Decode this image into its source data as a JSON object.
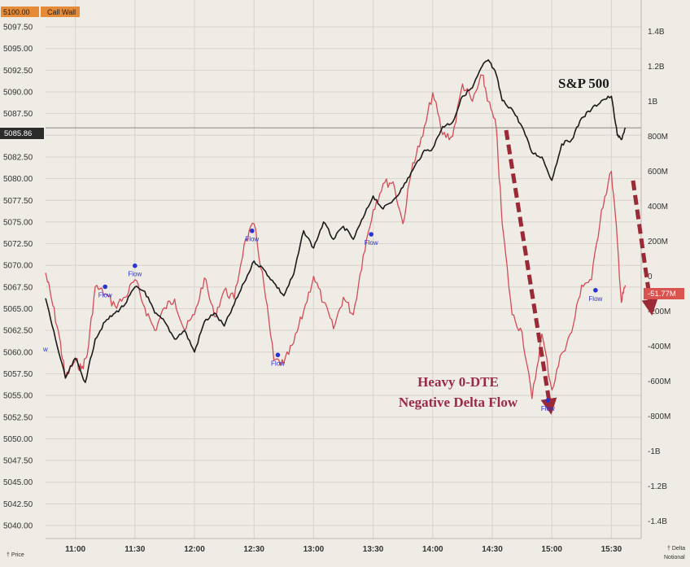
{
  "chart_data": {
    "type": "line",
    "title": "",
    "grid": true,
    "x_axis": {
      "ticks": [
        "11:00",
        "11:30",
        "12:00",
        "12:30",
        "13:00",
        "13:30",
        "14:00",
        "14:30",
        "15:00",
        "15:30"
      ],
      "range": [
        "10:45",
        "15:45"
      ],
      "label": "† Price"
    },
    "y_left": {
      "ticks": [
        "5097.50",
        "5095.00",
        "5092.50",
        "5090.00",
        "5087.50",
        "5085.00",
        "5082.50",
        "5080.00",
        "5077.50",
        "5075.00",
        "5072.50",
        "5070.00",
        "5067.50",
        "5065.00",
        "5062.50",
        "5060.00",
        "5057.50",
        "5055.00",
        "5052.50",
        "5050.00",
        "5047.50",
        "5045.00",
        "5042.50",
        "5040.00"
      ],
      "range": [
        5038.5,
        5100.6
      ],
      "current_label": "5085.86",
      "current_value": 5085.86,
      "top_label": "5100.00",
      "top_tag": "Call Wall"
    },
    "y_right": {
      "ticks": [
        "1.4B",
        "1.2B",
        "1B",
        "800M",
        "600M",
        "400M",
        "200M",
        "0",
        "-200M",
        "-400M",
        "-600M",
        "-800M",
        "-1B",
        "-1.2B",
        "-1.4B"
      ],
      "values_m": [
        1400,
        1200,
        1000,
        800,
        600,
        400,
        200,
        0,
        -200,
        -400,
        -600,
        -800,
        -1000,
        -1200,
        -1400
      ],
      "range_m": [
        -1500,
        1580
      ],
      "label": "† Delta Notional",
      "current_label": "-51.77M",
      "current_value_m": -51.77
    },
    "series": [
      {
        "name": "S&P 500",
        "axis": "left",
        "color": "#1c1a1a",
        "points": [
          [
            "10:45",
            5066.2
          ],
          [
            "10:50",
            5061.5
          ],
          [
            "10:55",
            5057.0
          ],
          [
            "11:00",
            5059.3
          ],
          [
            "11:05",
            5056.5
          ],
          [
            "11:10",
            5061.5
          ],
          [
            "11:15",
            5063.5
          ],
          [
            "11:20",
            5064.5
          ],
          [
            "11:25",
            5065.5
          ],
          [
            "11:30",
            5067.5
          ],
          [
            "11:35",
            5067.0
          ],
          [
            "11:40",
            5064.5
          ],
          [
            "11:45",
            5063.5
          ],
          [
            "11:50",
            5061.5
          ],
          [
            "11:55",
            5062.5
          ],
          [
            "12:00",
            5060.0
          ],
          [
            "12:05",
            5063.5
          ],
          [
            "12:10",
            5064.5
          ],
          [
            "12:15",
            5063.0
          ],
          [
            "12:20",
            5065.5
          ],
          [
            "12:25",
            5068.0
          ],
          [
            "12:30",
            5070.5
          ],
          [
            "12:35",
            5069.5
          ],
          [
            "12:40",
            5068.0
          ],
          [
            "12:45",
            5066.5
          ],
          [
            "12:50",
            5069.0
          ],
          [
            "12:55",
            5074.0
          ],
          [
            "13:00",
            5072.0
          ],
          [
            "13:05",
            5075.0
          ],
          [
            "13:10",
            5073.0
          ],
          [
            "13:15",
            5074.5
          ],
          [
            "13:20",
            5073.0
          ],
          [
            "13:25",
            5075.5
          ],
          [
            "13:30",
            5078.0
          ],
          [
            "13:35",
            5076.5
          ],
          [
            "13:40",
            5077.5
          ],
          [
            "13:45",
            5079.0
          ],
          [
            "13:50",
            5081.0
          ],
          [
            "13:55",
            5083.0
          ],
          [
            "14:00",
            5083.5
          ],
          [
            "14:05",
            5086.0
          ],
          [
            "14:10",
            5086.5
          ],
          [
            "14:15",
            5089.5
          ],
          [
            "14:20",
            5090.5
          ],
          [
            "14:25",
            5093.0
          ],
          [
            "14:28",
            5093.7
          ],
          [
            "14:32",
            5092.0
          ],
          [
            "14:35",
            5089.0
          ],
          [
            "14:40",
            5088.0
          ],
          [
            "14:45",
            5086.0
          ],
          [
            "14:50",
            5083.0
          ],
          [
            "14:55",
            5082.5
          ],
          [
            "15:00",
            5079.8
          ],
          [
            "15:05",
            5084.0
          ],
          [
            "15:10",
            5084.5
          ],
          [
            "15:15",
            5087.0
          ],
          [
            "15:20",
            5088.0
          ],
          [
            "15:25",
            5089.0
          ],
          [
            "15:30",
            5089.5
          ],
          [
            "15:33",
            5085.0
          ],
          [
            "15:35",
            5084.5
          ],
          [
            "15:37",
            5085.86
          ]
        ]
      },
      {
        "name": "",
        "axis": "right",
        "color": "#d44c55",
        "points": [
          [
            "10:45",
            20
          ],
          [
            "10:48",
            -130
          ],
          [
            "10:52",
            -350
          ],
          [
            "10:55",
            -580
          ],
          [
            "11:00",
            -480
          ],
          [
            "11:03",
            -530
          ],
          [
            "11:06",
            -450
          ],
          [
            "11:10",
            -60
          ],
          [
            "11:15",
            -100
          ],
          [
            "11:20",
            -170
          ],
          [
            "11:25",
            -120
          ],
          [
            "11:30",
            -20
          ],
          [
            "11:35",
            -180
          ],
          [
            "11:40",
            -310
          ],
          [
            "11:45",
            -180
          ],
          [
            "11:50",
            -130
          ],
          [
            "11:55",
            -310
          ],
          [
            "12:00",
            -220
          ],
          [
            "12:05",
            -10
          ],
          [
            "12:10",
            -230
          ],
          [
            "12:15",
            -80
          ],
          [
            "12:20",
            -130
          ],
          [
            "12:25",
            180
          ],
          [
            "12:30",
            300
          ],
          [
            "12:35",
            -50
          ],
          [
            "12:40",
            -480
          ],
          [
            "12:45",
            -500
          ],
          [
            "12:50",
            -380
          ],
          [
            "12:55",
            -200
          ],
          [
            "13:00",
            0
          ],
          [
            "13:05",
            -150
          ],
          [
            "13:10",
            -300
          ],
          [
            "13:15",
            -120
          ],
          [
            "13:20",
            -220
          ],
          [
            "13:25",
            120
          ],
          [
            "13:30",
            380
          ],
          [
            "13:35",
            530
          ],
          [
            "13:40",
            540
          ],
          [
            "13:45",
            300
          ],
          [
            "13:50",
            650
          ],
          [
            "13:55",
            800
          ],
          [
            "14:00",
            1050
          ],
          [
            "14:05",
            810
          ],
          [
            "14:10",
            800
          ],
          [
            "14:15",
            1100
          ],
          [
            "14:20",
            1000
          ],
          [
            "14:25",
            1150
          ],
          [
            "14:28",
            1000
          ],
          [
            "14:32",
            850
          ],
          [
            "14:35",
            300
          ],
          [
            "14:40",
            -220
          ],
          [
            "14:45",
            -320
          ],
          [
            "14:50",
            -700
          ],
          [
            "14:55",
            -330
          ],
          [
            "15:00",
            -650
          ],
          [
            "15:05",
            -440
          ],
          [
            "15:10",
            -320
          ],
          [
            "15:15",
            -50
          ],
          [
            "15:20",
            -20
          ],
          [
            "15:25",
            380
          ],
          [
            "15:30",
            600
          ],
          [
            "15:33",
            200
          ],
          [
            "15:35",
            -150
          ],
          [
            "15:37",
            -51.77
          ]
        ]
      }
    ],
    "flow_markers": [
      {
        "label": "Flow",
        "time": "11:15",
        "value_m": -60
      },
      {
        "label": "Flow",
        "time": "11:30",
        "value_m": 60
      },
      {
        "label": "Flow",
        "time": "12:29",
        "value_m": 260
      },
      {
        "label": "Flow",
        "time": "12:42",
        "value_m": -450
      },
      {
        "label": "Flow",
        "time": "13:29",
        "value_m": 240
      },
      {
        "label": "Flow",
        "time": "14:58",
        "value_m": -710
      },
      {
        "label": "Flow",
        "time": "15:22",
        "value_m": -80
      }
    ],
    "edge_label": "w",
    "annotations": {
      "series_label": "S&P 500",
      "flow_text_line1": "Heavy 0-DTE",
      "flow_text_line2": "Negative Delta Flow"
    },
    "colors": {
      "background": "#efebe5",
      "price_line": "#1c1a1a",
      "delta_line": "#d44c55",
      "arrow": "#9a2a36",
      "flow_marker": "#2a33d4",
      "call_wall_tag": "#e58a36",
      "delta_tag": "#d9534f"
    }
  }
}
